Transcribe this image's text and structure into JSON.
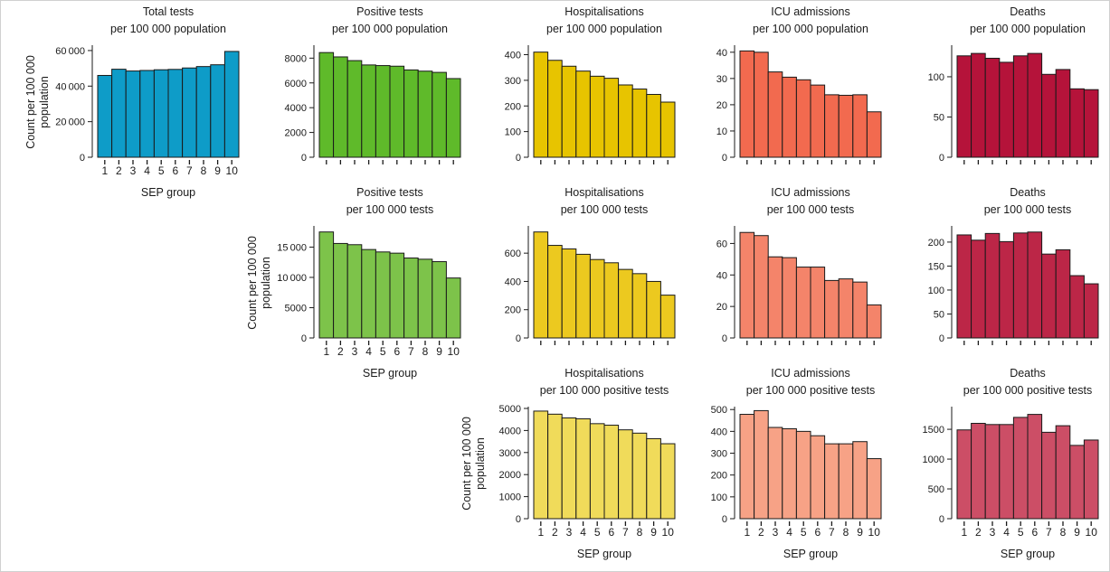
{
  "categories": [
    "1",
    "2",
    "3",
    "4",
    "5",
    "6",
    "7",
    "8",
    "9",
    "10"
  ],
  "x_axis_label": "SEP group",
  "y_axis_label": [
    "Count per 100 000",
    "population"
  ],
  "chart_data": [
    {
      "id": "r1c1",
      "type": "bar",
      "row": 1,
      "col": 1,
      "title": [
        "Total tests",
        "per 100 000  population"
      ],
      "color": "#0e9cc8",
      "categories": [
        "1",
        "2",
        "3",
        "4",
        "5",
        "6",
        "7",
        "8",
        "9",
        "10"
      ],
      "values": [
        46000,
        49500,
        48500,
        48800,
        49200,
        49400,
        50200,
        51000,
        52000,
        59500
      ],
      "ylim": [
        0,
        62000
      ],
      "yticks": [
        0,
        20000,
        40000,
        60000
      ],
      "show_xticks": true,
      "show_xlabel": true,
      "show_ylabel": true
    },
    {
      "id": "r1c2",
      "type": "bar",
      "row": 1,
      "col": 2,
      "title": [
        "Positive tests",
        "per 100 000  population"
      ],
      "color": "#5fba2a",
      "categories": [
        "1",
        "2",
        "3",
        "4",
        "5",
        "6",
        "7",
        "8",
        "9",
        "10"
      ],
      "values": [
        8450,
        8100,
        7800,
        7450,
        7400,
        7350,
        7050,
        6950,
        6850,
        6350
      ],
      "ylim": [
        0,
        8900
      ],
      "yticks": [
        0,
        2000,
        4000,
        6000,
        8000
      ],
      "show_xticks": false,
      "show_xlabel": false,
      "show_ylabel": false
    },
    {
      "id": "r1c3",
      "type": "bar",
      "row": 1,
      "col": 3,
      "title": [
        "Hospitalisations",
        "per 100 000  population"
      ],
      "color": "#e7c400",
      "categories": [
        "1",
        "2",
        "3",
        "4",
        "5",
        "6",
        "7",
        "8",
        "9",
        "10"
      ],
      "values": [
        410,
        378,
        355,
        336,
        316,
        308,
        282,
        266,
        245,
        215
      ],
      "ylim": [
        0,
        430
      ],
      "yticks": [
        0,
        100,
        200,
        300,
        400
      ],
      "show_xticks": false,
      "show_xlabel": false,
      "show_ylabel": false
    },
    {
      "id": "r1c4",
      "type": "bar",
      "row": 1,
      "col": 4,
      "title": [
        "ICU admissions",
        "per 100 000  population"
      ],
      "color": "#f26a4f",
      "categories": [
        "1",
        "2",
        "3",
        "4",
        "5",
        "6",
        "7",
        "8",
        "9",
        "10"
      ],
      "values": [
        40.5,
        40,
        32.5,
        30.5,
        29.5,
        27.5,
        23.8,
        23.6,
        23.8,
        17.3
      ],
      "ylim": [
        0,
        42
      ],
      "yticks": [
        0,
        10,
        20,
        30,
        40
      ],
      "show_xticks": false,
      "show_xlabel": false,
      "show_ylabel": false
    },
    {
      "id": "r1c5",
      "type": "bar",
      "row": 1,
      "col": 5,
      "title": [
        "Deaths",
        "per 100 000  population"
      ],
      "color": "#b5133a",
      "categories": [
        "1",
        "2",
        "3",
        "4",
        "5",
        "6",
        "7",
        "8",
        "9",
        "10"
      ],
      "values": [
        126,
        129,
        123,
        118,
        126,
        129,
        103,
        109,
        85,
        84
      ],
      "ylim": [
        0,
        137
      ],
      "yticks": [
        0,
        50,
        100
      ],
      "show_xticks": false,
      "show_xlabel": false,
      "show_ylabel": false
    },
    {
      "id": "r2c2",
      "type": "bar",
      "row": 2,
      "col": 2,
      "title": [
        "Positive tests",
        "per 100 000 tests"
      ],
      "color": "#7dc34a",
      "categories": [
        "1",
        "2",
        "3",
        "4",
        "5",
        "6",
        "7",
        "8",
        "9",
        "10"
      ],
      "values": [
        17500,
        15600,
        15400,
        14600,
        14200,
        14000,
        13200,
        13000,
        12600,
        9900
      ],
      "ylim": [
        0,
        18200
      ],
      "yticks": [
        0,
        5000,
        10000,
        15000
      ],
      "show_xticks": true,
      "show_xlabel": true,
      "show_ylabel": true
    },
    {
      "id": "r2c3",
      "type": "bar",
      "row": 2,
      "col": 3,
      "title": [
        "Hospitalisations",
        "per 100 000 tests"
      ],
      "color": "#ecc91f",
      "categories": [
        "1",
        "2",
        "3",
        "4",
        "5",
        "6",
        "7",
        "8",
        "9",
        "10"
      ],
      "values": [
        750,
        655,
        630,
        592,
        555,
        532,
        485,
        455,
        400,
        303
      ],
      "ylim": [
        0,
        780
      ],
      "yticks": [
        0,
        200,
        400,
        600
      ],
      "show_xticks": false,
      "show_xlabel": false,
      "show_ylabel": false
    },
    {
      "id": "r2c4",
      "type": "bar",
      "row": 2,
      "col": 4,
      "title": [
        "ICU admissions",
        "per 100 000  tests"
      ],
      "color": "#f4846a",
      "categories": [
        "1",
        "2",
        "3",
        "4",
        "5",
        "6",
        "7",
        "8",
        "9",
        "10"
      ],
      "values": [
        67,
        65,
        51.5,
        51,
        45,
        45,
        36.5,
        37.5,
        35.5,
        21
      ],
      "ylim": [
        0,
        70
      ],
      "yticks": [
        0,
        20,
        40,
        60
      ],
      "show_xticks": false,
      "show_xlabel": false,
      "show_ylabel": false
    },
    {
      "id": "r2c5",
      "type": "bar",
      "row": 2,
      "col": 5,
      "title": [
        "Deaths",
        "per 100 000  tests"
      ],
      "color": "#bc2647",
      "categories": [
        "1",
        "2",
        "3",
        "4",
        "5",
        "6",
        "7",
        "8",
        "9",
        "10"
      ],
      "values": [
        215,
        204,
        218,
        201,
        219,
        221,
        175,
        184,
        130,
        113
      ],
      "ylim": [
        0,
        230
      ],
      "yticks": [
        0,
        50,
        100,
        150,
        200
      ],
      "show_xticks": false,
      "show_xlabel": false,
      "show_ylabel": false
    },
    {
      "id": "r3c3",
      "type": "bar",
      "row": 3,
      "col": 3,
      "title": [
        "Hospitalisations",
        "per 100 000 positive tests"
      ],
      "color": "#f0db5a",
      "categories": [
        "1",
        "2",
        "3",
        "4",
        "5",
        "6",
        "7",
        "8",
        "9",
        "10"
      ],
      "values": [
        4880,
        4740,
        4570,
        4530,
        4310,
        4240,
        4030,
        3880,
        3630,
        3400
      ],
      "ylim": [
        0,
        5000
      ],
      "yticks": [
        0,
        1000,
        2000,
        3000,
        4000,
        5000
      ],
      "show_xticks": true,
      "show_xlabel": true,
      "show_ylabel": true
    },
    {
      "id": "r3c4",
      "type": "bar",
      "row": 3,
      "col": 4,
      "title": [
        "ICU admissions",
        "per 100 000 positive tests"
      ],
      "color": "#f7a286",
      "categories": [
        "1",
        "2",
        "3",
        "4",
        "5",
        "6",
        "7",
        "8",
        "9",
        "10"
      ],
      "values": [
        478,
        495,
        418,
        412,
        400,
        380,
        343,
        343,
        353,
        275
      ],
      "ylim": [
        0,
        505
      ],
      "yticks": [
        0,
        100,
        200,
        300,
        400,
        500
      ],
      "show_xticks": true,
      "show_xlabel": true,
      "show_ylabel": false
    },
    {
      "id": "r3c5",
      "type": "bar",
      "row": 3,
      "col": 5,
      "title": [
        "Deaths",
        "per 100 000 positive tests"
      ],
      "color": "#cc4e66",
      "categories": [
        "1",
        "2",
        "3",
        "4",
        "5",
        "6",
        "7",
        "8",
        "9",
        "10"
      ],
      "values": [
        1490,
        1600,
        1580,
        1580,
        1700,
        1750,
        1450,
        1560,
        1230,
        1320
      ],
      "ylim": [
        0,
        1850
      ],
      "yticks": [
        0,
        500,
        1000,
        1500
      ],
      "show_xticks": true,
      "show_xlabel": true,
      "show_ylabel": false
    }
  ]
}
